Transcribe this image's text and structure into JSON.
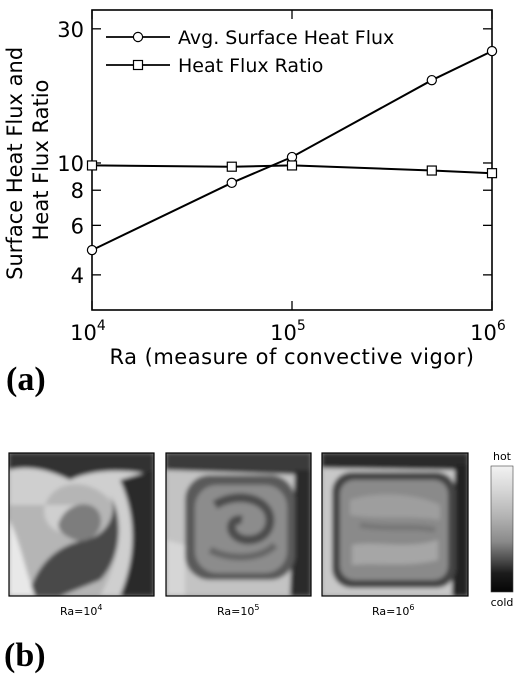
{
  "panel_a": {
    "label": "(a)"
  },
  "panel_b": {
    "label": "(b)",
    "snapshots": [
      {
        "label_base": "Ra=10",
        "label_exp": "4"
      },
      {
        "label_base": "Ra=10",
        "label_exp": "5"
      },
      {
        "label_base": "Ra=10",
        "label_exp": "6"
      }
    ],
    "colorbar": {
      "top_label": "hot",
      "bottom_label": "cold"
    }
  },
  "chart_data": {
    "type": "line",
    "xscale": "log",
    "yscale": "log",
    "xlabel": "Ra (measure of convective vigor)",
    "ylabel_lines": [
      "Surface Heat Flux and",
      "Heat Flux Ratio"
    ],
    "xlim": [
      10000,
      1000000
    ],
    "ylim": [
      3,
      35
    ],
    "x_ticks": [
      {
        "value": 10000,
        "base": "10",
        "exp": "4"
      },
      {
        "value": 100000,
        "base": "10",
        "exp": "5"
      },
      {
        "value": 1000000,
        "base": "10",
        "exp": "6"
      }
    ],
    "y_ticks": [
      {
        "value": 4,
        "label": "4"
      },
      {
        "value": 6,
        "label": "6"
      },
      {
        "value": 8,
        "label": "8"
      },
      {
        "value": 10,
        "label": "10"
      },
      {
        "value": 30,
        "label": "30"
      }
    ],
    "legend_position": "top-right",
    "series": [
      {
        "name": "Avg. Surface Heat Flux",
        "marker": "circle",
        "x": [
          10000,
          50000,
          100000,
          500000,
          1000000
        ],
        "y": [
          4.9,
          8.5,
          10.5,
          19.7,
          25.0
        ]
      },
      {
        "name": "Heat Flux Ratio",
        "marker": "square",
        "x": [
          10000,
          50000,
          100000,
          500000,
          1000000
        ],
        "y": [
          9.8,
          9.7,
          9.8,
          9.4,
          9.2
        ]
      }
    ]
  }
}
